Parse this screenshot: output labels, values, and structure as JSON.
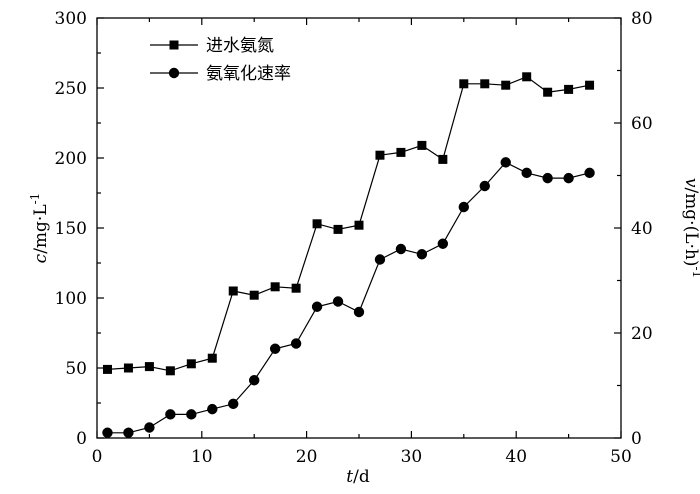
{
  "chart_data": {
    "type": "line",
    "x_axis": {
      "label_italic": "t",
      "label_unit": "/d",
      "range": [
        0,
        50
      ],
      "ticks": [
        0,
        10,
        20,
        30,
        40,
        50
      ]
    },
    "y_left": {
      "label_italic": "c",
      "label_unit": "/mg·L",
      "label_sup": "-1",
      "range": [
        0,
        300
      ],
      "ticks": [
        0,
        50,
        100,
        150,
        200,
        250,
        300
      ]
    },
    "y_right": {
      "label_italic": "v",
      "label_unit": "/mg·(L·h)",
      "label_sup": "-1",
      "range": [
        0,
        80
      ],
      "ticks": [
        0,
        20,
        40,
        60,
        80
      ]
    },
    "legend": {
      "position": "top-left"
    },
    "series": [
      {
        "name": "进水氨氮",
        "marker": "square",
        "axis": "left",
        "x": [
          1,
          3,
          5,
          7,
          9,
          11,
          13,
          15,
          17,
          19,
          21,
          23,
          25,
          27,
          29,
          31,
          33,
          35,
          37,
          39,
          41,
          43,
          45,
          47
        ],
        "y": [
          49,
          50,
          51,
          48,
          53,
          57,
          105,
          102,
          108,
          107,
          153,
          149,
          152,
          202,
          204,
          209,
          199,
          253,
          253,
          252,
          258,
          247,
          249,
          252
        ]
      },
      {
        "name": "氨氧化速率",
        "marker": "circle",
        "axis": "right",
        "x": [
          1,
          3,
          5,
          7,
          9,
          11,
          13,
          15,
          17,
          19,
          21,
          23,
          25,
          27,
          29,
          31,
          33,
          35,
          37,
          39,
          41,
          43,
          45,
          47
        ],
        "y": [
          1,
          1,
          2,
          4.5,
          4.5,
          5.5,
          6.5,
          11,
          17,
          18,
          25,
          26,
          24,
          34,
          36,
          35,
          37,
          44,
          48,
          52.5,
          50.5,
          49.5,
          49.5,
          50.5
        ]
      }
    ]
  }
}
